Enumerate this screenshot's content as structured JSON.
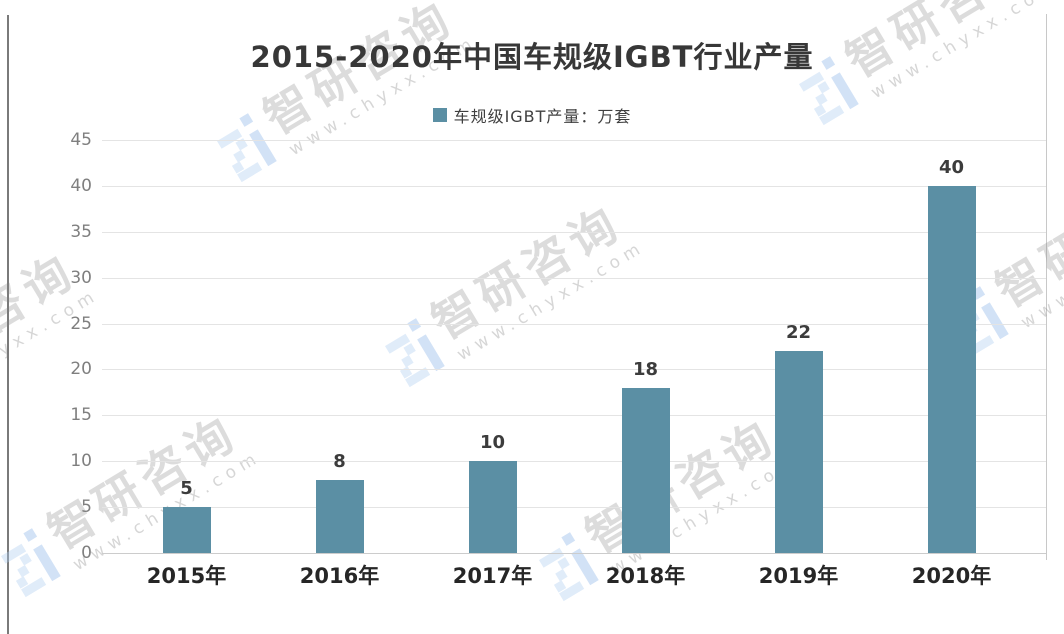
{
  "page": {
    "background_color": "#ffffff"
  },
  "chart_data": {
    "type": "bar",
    "title": "2015-2020年中国车规级IGBT行业产量",
    "categories": [
      "2015年",
      "2016年",
      "2017年",
      "2018年",
      "2019年",
      "2020年"
    ],
    "values": [
      5,
      8,
      10,
      18,
      22,
      40
    ],
    "series": [
      {
        "name": "车规级IGBT产量：万套",
        "values": [
          5,
          8,
          10,
          18,
          22,
          40
        ]
      }
    ],
    "legend": {
      "position": "top-center",
      "entries": [
        {
          "label": "车规级IGBT产量：万套",
          "color": "#5B8FA4"
        }
      ]
    },
    "xlabel": "",
    "ylabel": "",
    "ylim": [
      0,
      45
    ],
    "ytick_step": 5,
    "grid": true,
    "bar_color": "#5B8FA4",
    "value_labels_shown": true
  },
  "watermark": {
    "logo": "zhiyan-consulting-logo",
    "brand_text": "智研咨询",
    "url_text": "www.chyxx.com",
    "logo_color_light": "#aecdf0",
    "logo_color_dark": "#8ab4e8"
  }
}
